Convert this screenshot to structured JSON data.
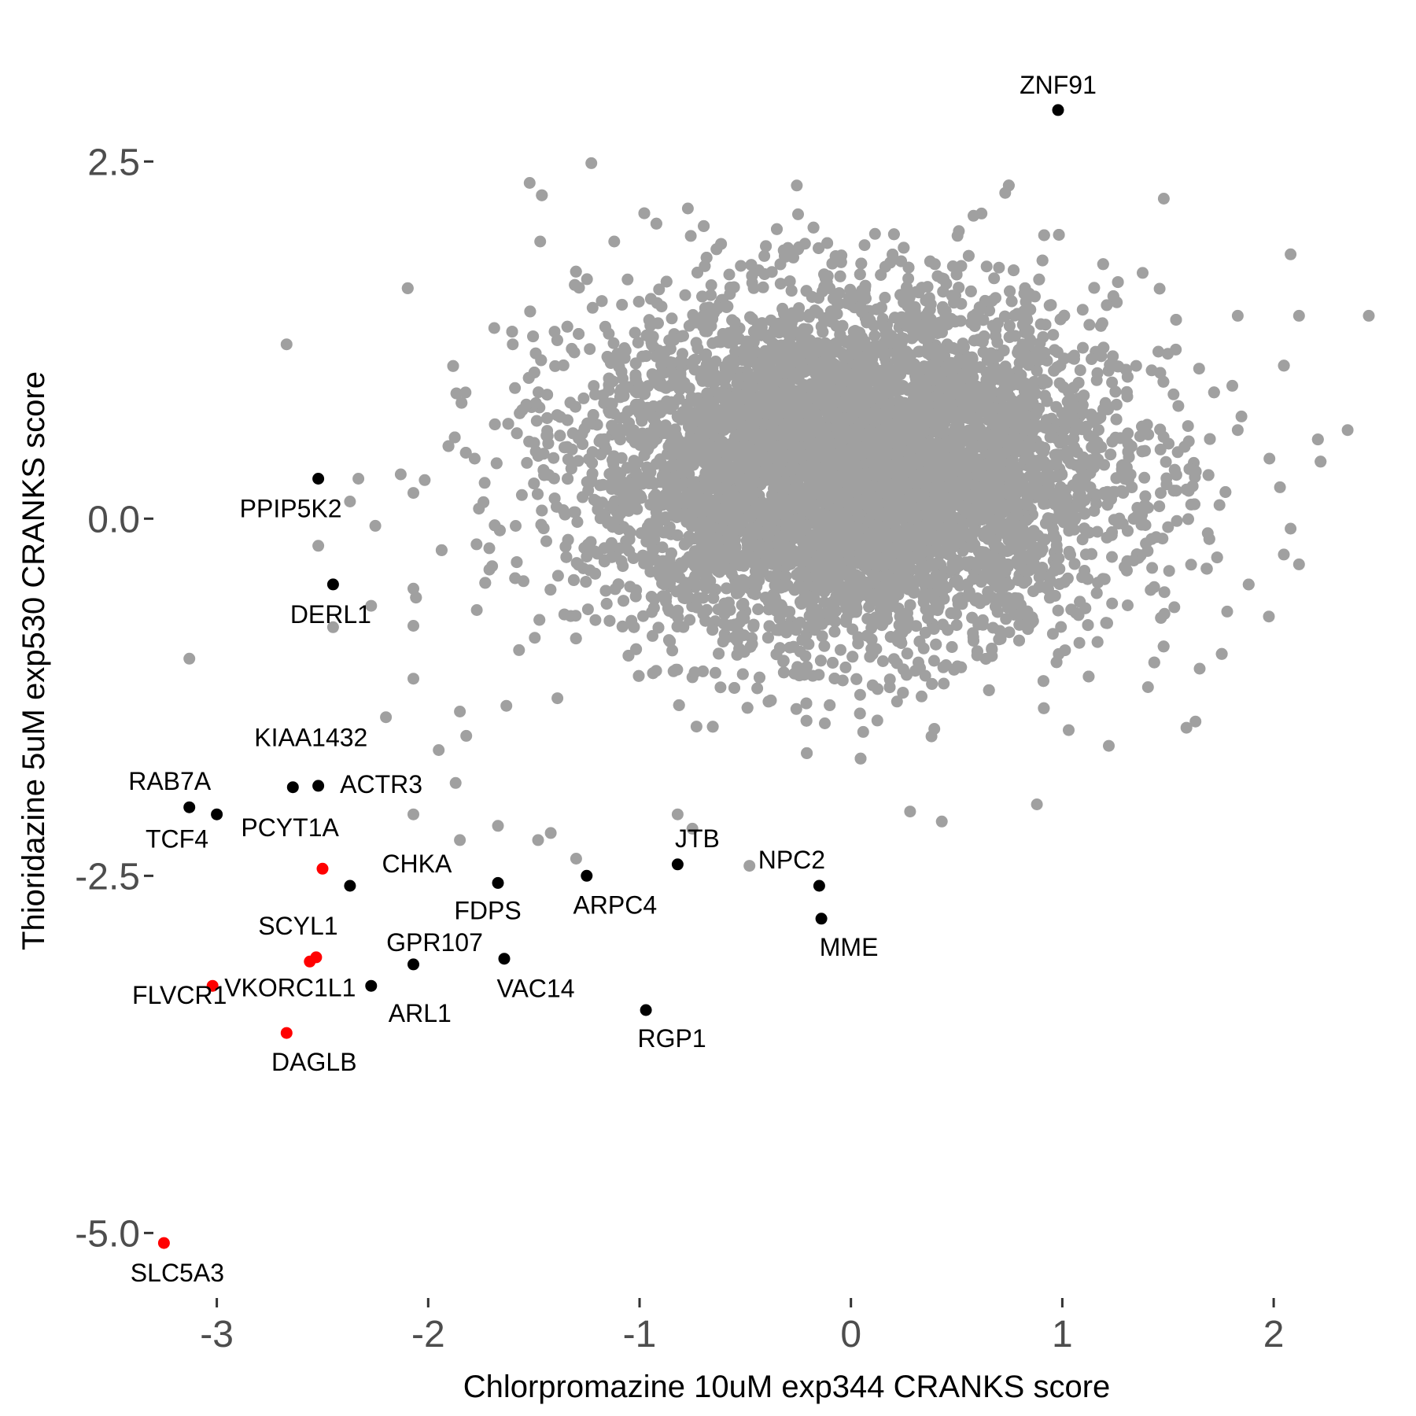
{
  "chart_data": {
    "type": "scatter",
    "title": "",
    "xlabel": "Chlorpromazine 10uM exp344 CRANKS score",
    "ylabel": "Thioridazine 5uM exp530 CRANKS score",
    "xlim": [
      -3.3,
      2.45
    ],
    "ylim": [
      -5.4,
      3.3
    ],
    "x_ticks": [
      -3,
      -2,
      -1,
      0,
      1,
      2
    ],
    "x_tick_labels": [
      "-3",
      "-2",
      "-1",
      "0",
      "1",
      "2"
    ],
    "y_ticks": [
      2.5,
      0.0,
      -2.5,
      -5.0
    ],
    "y_tick_labels": [
      "2.5",
      "0.0",
      "-2.5",
      "-5.0"
    ],
    "grid": false,
    "legend": "none",
    "colors": {
      "background_genes": "#a0a0a0",
      "highlight": "#000000",
      "red_highlight": "#ff0000"
    },
    "background_cloud": {
      "description_color": "background_genes",
      "x_mean": 0.0,
      "y_mean": 0.35,
      "x_sd": 0.62,
      "y_sd": 0.6,
      "count": 9000
    },
    "series": [
      {
        "color": "#000000",
        "points": [
          {
            "label": "ZNF91",
            "x": 0.98,
            "y": 2.86
          },
          {
            "label": "PPIP5K2",
            "x": -2.52,
            "y": 0.28
          },
          {
            "label": "DERL1",
            "x": -2.45,
            "y": -0.46
          },
          {
            "label": "ACTR3",
            "x": -2.52,
            "y": -1.87
          },
          {
            "label": "KIAA1432",
            "x": -2.64,
            "y": -1.88
          },
          {
            "label": "RAB7A",
            "x": -3.13,
            "y": -2.02
          },
          {
            "label": "PCYT1A",
            "x": -3.0,
            "y": -2.07
          },
          {
            "label": "CHKA",
            "x": -2.37,
            "y": -2.57
          },
          {
            "label": "FDPS",
            "x": -1.67,
            "y": -2.55
          },
          {
            "label": "ARPC4",
            "x": -1.25,
            "y": -2.5
          },
          {
            "label": "JTB",
            "x": -0.82,
            "y": -2.42
          },
          {
            "label": "NPC2",
            "x": -0.15,
            "y": -2.57
          },
          {
            "label": "MME",
            "x": -0.14,
            "y": -2.8
          },
          {
            "label": "GPR107",
            "x": -2.07,
            "y": -3.12
          },
          {
            "label": "VAC14",
            "x": -1.64,
            "y": -3.08
          },
          {
            "label": "ARL1",
            "x": -2.27,
            "y": -3.27
          },
          {
            "label": "RGP1",
            "x": -0.97,
            "y": -3.44
          }
        ]
      },
      {
        "color": "#ff0000",
        "points": [
          {
            "label": "TCF4",
            "x": -2.5,
            "y": -2.45
          },
          {
            "label": "SCYL1",
            "x": -2.53,
            "y": -3.07
          },
          {
            "label": "VKORC1L1",
            "x": -2.56,
            "y": -3.1
          },
          {
            "label": "FLVCR1",
            "x": -3.02,
            "y": -3.27
          },
          {
            "label": "DAGLB",
            "x": -2.67,
            "y": -3.6
          },
          {
            "label": "SLC5A3",
            "x": -3.25,
            "y": -5.07
          }
        ]
      }
    ],
    "outliers": [
      [
        -2.67,
        1.22
      ],
      [
        -3.13,
        -0.98
      ],
      [
        -2.45,
        -0.76
      ],
      [
        -2.27,
        -0.61
      ],
      [
        -2.07,
        -0.75
      ],
      [
        -2.2,
        -1.39
      ],
      [
        -2.37,
        0.12
      ],
      [
        -2.25,
        -0.05
      ],
      [
        -2.52,
        -0.19
      ],
      [
        -2.07,
        0.18
      ],
      [
        -2.13,
        0.31
      ],
      [
        -2.33,
        0.28
      ],
      [
        -2.07,
        -1.12
      ],
      [
        -1.95,
        -1.62
      ],
      [
        -1.85,
        -1.35
      ],
      [
        -2.07,
        -2.07
      ],
      [
        -1.87,
        -1.85
      ],
      [
        -1.82,
        -1.52
      ],
      [
        -1.85,
        -2.25
      ],
      [
        -1.67,
        -2.15
      ],
      [
        -1.48,
        -2.25
      ],
      [
        -1.52,
        2.35
      ],
      [
        -1.47,
        1.94
      ],
      [
        -1.08,
        0.98
      ],
      [
        -1.12,
        1.94
      ],
      [
        -1.6,
        1.22
      ],
      [
        -1.78,
        0.42
      ],
      [
        -1.76,
        0.07
      ],
      [
        -2.07,
        -0.49
      ],
      [
        -1.77,
        -0.64
      ],
      [
        -1.57,
        -0.92
      ],
      [
        -1.63,
        -1.31
      ],
      [
        -1.42,
        -2.2
      ],
      [
        -1.3,
        -2.38
      ],
      [
        -0.75,
        -2.17
      ],
      [
        -0.82,
        -2.07
      ],
      [
        -0.48,
        -2.43
      ],
      [
        0.28,
        -2.05
      ],
      [
        0.43,
        -2.12
      ],
      [
        0.88,
        -2.0
      ],
      [
        1.03,
        -1.48
      ],
      [
        1.22,
        -1.59
      ],
      [
        0.73,
        2.28
      ],
      [
        0.58,
        2.12
      ],
      [
        1.48,
        2.24
      ],
      [
        1.38,
        1.72
      ],
      [
        1.83,
        1.42
      ],
      [
        2.08,
        1.85
      ],
      [
        2.12,
        1.42
      ],
      [
        2.45,
        1.42
      ],
      [
        2.35,
        0.62
      ],
      [
        2.12,
        -0.32
      ],
      [
        2.08,
        -0.07
      ],
      [
        2.03,
        0.22
      ],
      [
        1.98,
        0.42
      ],
      [
        1.78,
        -0.65
      ],
      [
        1.65,
        -1.05
      ],
      [
        1.63,
        -1.42
      ],
      [
        1.53,
        -0.62
      ],
      [
        1.83,
        0.62
      ]
    ]
  }
}
